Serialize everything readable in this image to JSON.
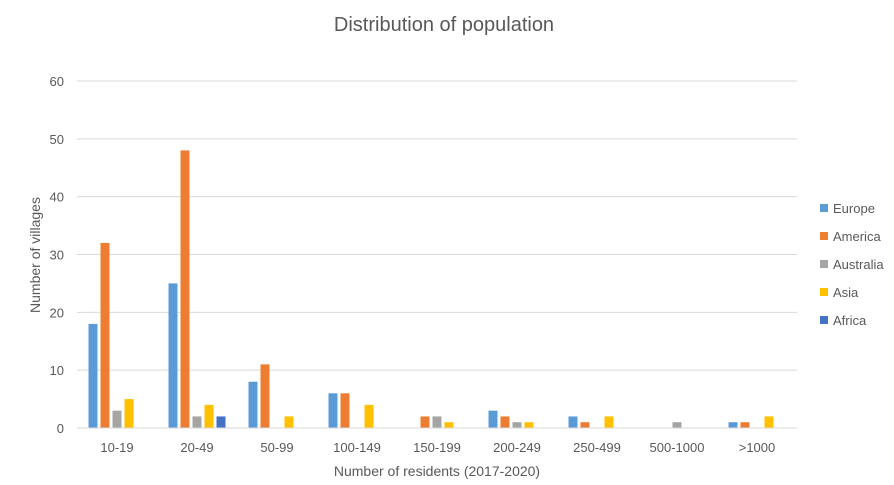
{
  "chart_data": {
    "type": "bar",
    "title": "Distribution of population",
    "xlabel": "Number of residents (2017-2020)",
    "ylabel": "Number of villages",
    "ylim": [
      0,
      60
    ],
    "yticks": [
      0,
      10,
      20,
      30,
      40,
      50,
      60
    ],
    "grid": true,
    "legend_position": "right",
    "categories": [
      "10-19",
      "20-49",
      "50-99",
      "100-149",
      "150-199",
      "200-249",
      "250-499",
      "500-1000",
      ">1000"
    ],
    "series": [
      {
        "name": "Europe",
        "color": "#5B9BD5",
        "values": [
          18,
          25,
          8,
          6,
          0,
          3,
          2,
          0,
          1
        ]
      },
      {
        "name": "America",
        "color": "#ED7D31",
        "values": [
          32,
          48,
          11,
          6,
          2,
          2,
          1,
          0,
          1
        ]
      },
      {
        "name": "Australia",
        "color": "#A5A5A5",
        "values": [
          3,
          2,
          0,
          0,
          2,
          1,
          0,
          1,
          0
        ]
      },
      {
        "name": "Asia",
        "color": "#FFC000",
        "values": [
          5,
          4,
          2,
          4,
          1,
          1,
          2,
          0,
          2
        ]
      },
      {
        "name": "Africa",
        "color": "#4472C4",
        "values": [
          0,
          2,
          0,
          0,
          0,
          0,
          0,
          0,
          0
        ]
      }
    ]
  }
}
